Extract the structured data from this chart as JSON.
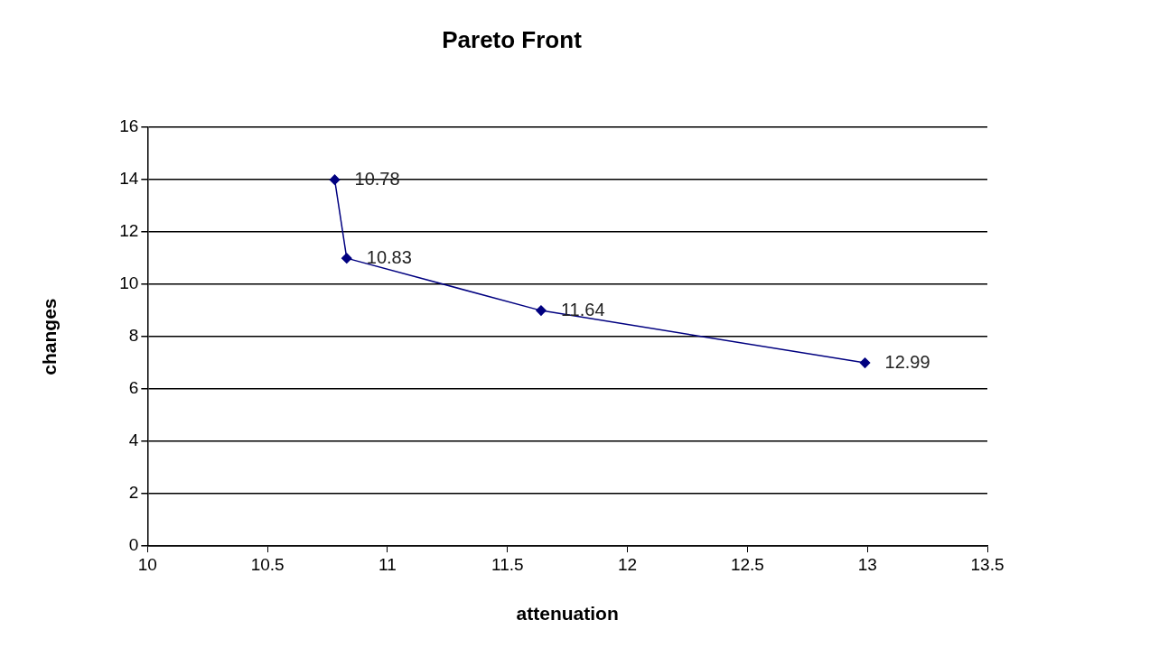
{
  "chart_data": {
    "type": "line",
    "title": "Pareto Front",
    "xlabel": "attenuation",
    "ylabel": "changes",
    "x": [
      10.78,
      10.83,
      11.64,
      12.99
    ],
    "series": [
      {
        "color": "#000080",
        "values": [
          14,
          11,
          9,
          7
        ]
      }
    ],
    "annotations": [
      {
        "text": "10.78",
        "x": 10.78,
        "y": 14
      },
      {
        "text": "10.83",
        "x": 10.83,
        "y": 11
      },
      {
        "text": "11.64",
        "x": 11.64,
        "y": 9
      },
      {
        "text": "12.99",
        "x": 12.99,
        "y": 7
      }
    ],
    "xlim": [
      10,
      13.5
    ],
    "xticks": [
      10,
      10.5,
      11,
      11.5,
      12,
      12.5,
      13,
      13.5
    ],
    "ylim": [
      0,
      16
    ],
    "yticks": [
      0,
      2,
      4,
      6,
      8,
      10,
      12,
      14,
      16
    ],
    "grid": "y",
    "legend": false,
    "marker": "diamond",
    "line_style": "solid"
  }
}
